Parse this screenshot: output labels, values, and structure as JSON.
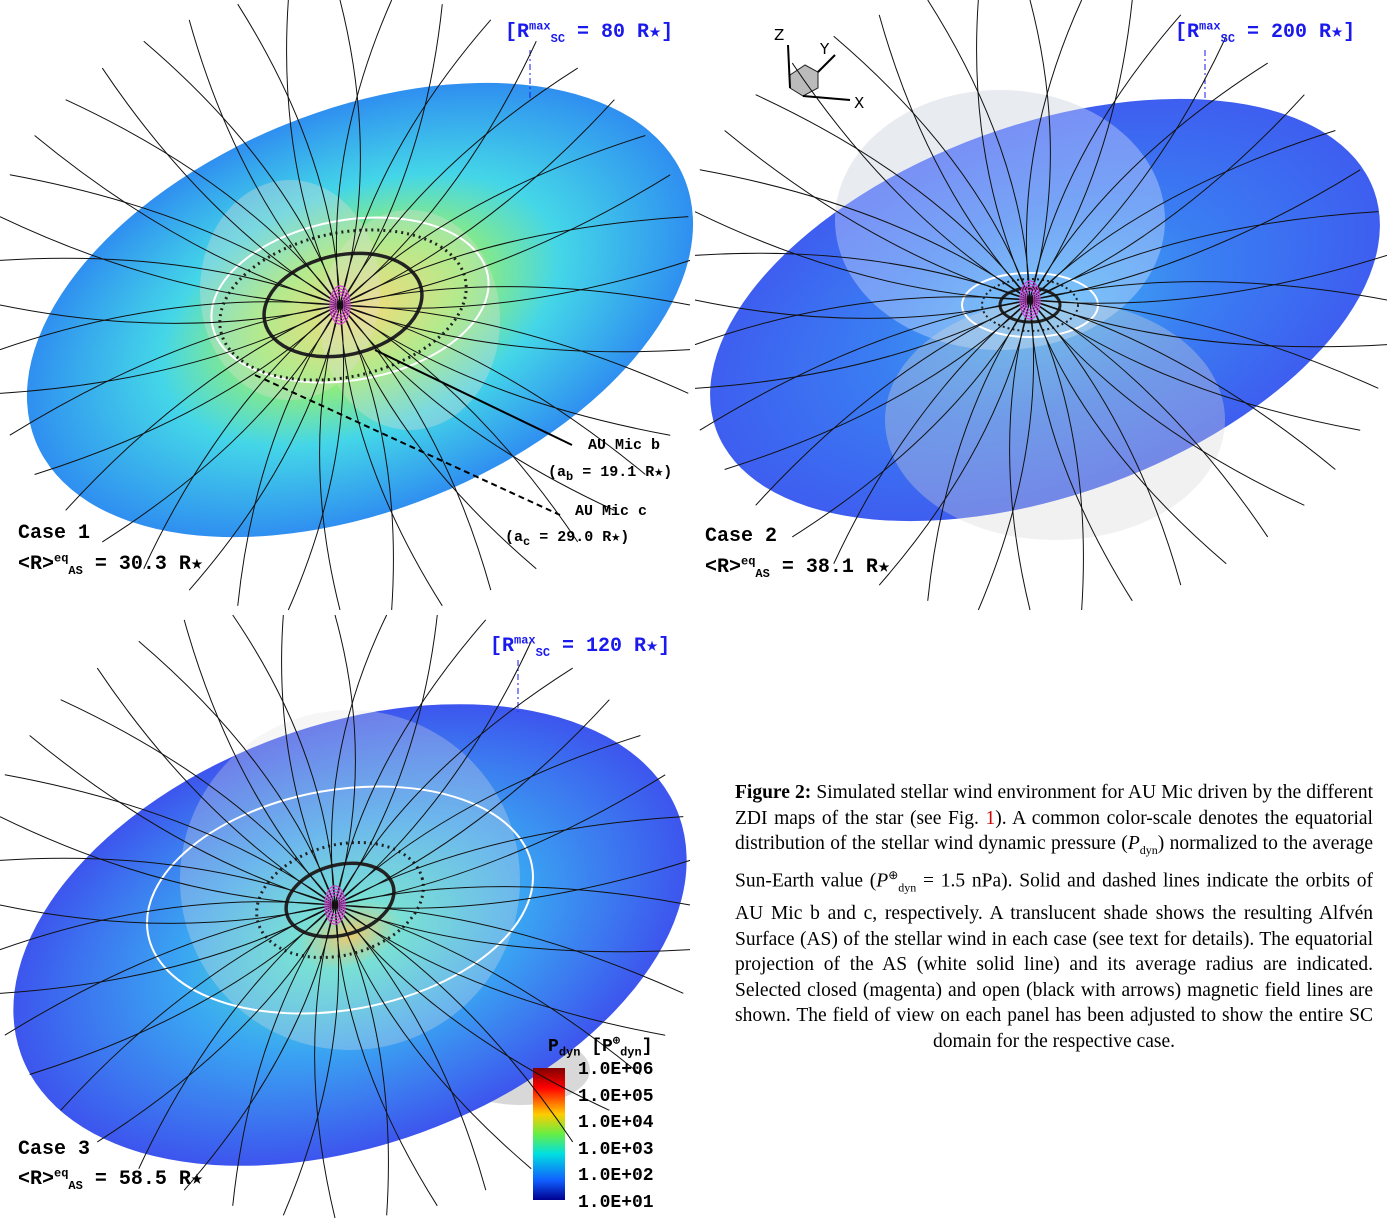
{
  "panels": [
    {
      "case": "Case 1",
      "avg": {
        "prefix": "<R>",
        "sup": "eq",
        "sub": "AS",
        "value": "= 30.3 R★"
      },
      "domain": {
        "prefix": "[R",
        "sup": "max",
        "sub": "SC",
        "value": "= 80 R★]"
      },
      "planets": [
        {
          "name": "AU Mic b",
          "a_prefix": "(a",
          "a_sub": "b",
          "a_value": "= 19.1 R★)"
        },
        {
          "name": "AU Mic c",
          "a_prefix": "(a",
          "a_sub": "c",
          "a_value": "= 29.0 R★)"
        }
      ]
    },
    {
      "case": "Case 2",
      "avg": {
        "prefix": "<R>",
        "sup": "eq",
        "sub": "AS",
        "value": "= 38.1 R★"
      },
      "domain": {
        "prefix": "[R",
        "sup": "max",
        "sub": "SC",
        "value": "= 200 R★]"
      },
      "axes": [
        "Z",
        "Y",
        "X"
      ]
    },
    {
      "case": "Case 3",
      "avg": {
        "prefix": "<R>",
        "sup": "eq",
        "sub": "AS",
        "value": "= 58.5 R★"
      },
      "domain": {
        "prefix": "[R",
        "sup": "max",
        "sub": "SC",
        "value": "= 120 R★]"
      }
    }
  ],
  "colorbar": {
    "title": [
      "P",
      "dyn",
      "[P",
      "⊕",
      "dyn",
      "]"
    ],
    "ticks": [
      "1.0E+06",
      "1.0E+05",
      "1.0E+04",
      "1.0E+03",
      "1.0E+02",
      "1.0E+01"
    ]
  },
  "caption": {
    "label": "Figure 2:",
    "parts": [
      "Simulated stellar wind environment for AU Mic driven by the different ZDI maps of the star (see Fig. ",
      "1",
      "). A common color-scale denotes the equatorial distribution of the stellar wind dynamic pressure (",
      "P",
      "dyn",
      ") normalized to the average Sun-Earth value (",
      "P",
      "⊕",
      "dyn",
      " = 1.5 nPa). Solid and dashed lines indicate the orbits of AU Mic b and c, respectively. A translucent shade shows the resulting Alfvén Surface (AS) of the stellar wind in each case (see text for details). The equatorial projection of the AS (white solid line) and its average radius are indicated. Selected closed (magenta) and open (black with arrows) magnetic field lines are shown. The field of view on each panel has been adjusted to show the entire SC domain for the respective case."
    ]
  }
}
